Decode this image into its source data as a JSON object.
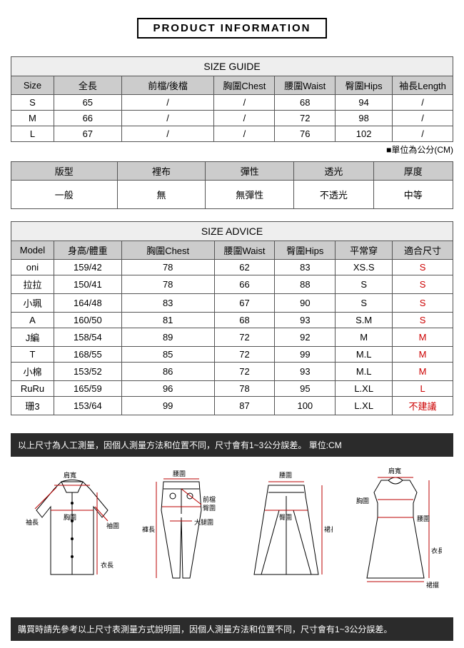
{
  "title": "PRODUCT INFORMATION",
  "sizeGuide": {
    "heading": "SIZE GUIDE",
    "columns": [
      "Size",
      "全長",
      "前檔/後檔",
      "胸圍Chest",
      "腰圍Waist",
      "臀圍Hips",
      "袖長Length"
    ],
    "rows": [
      [
        "S",
        "65",
        "/",
        "/",
        "68",
        "94",
        "/"
      ],
      [
        "M",
        "66",
        "/",
        "/",
        "72",
        "98",
        "/"
      ],
      [
        "L",
        "67",
        "/",
        "/",
        "76",
        "102",
        "/"
      ]
    ],
    "unitNote": "■單位為公分(CM)"
  },
  "attributes": {
    "columns": [
      "版型",
      "裡布",
      "彈性",
      "透光",
      "厚度"
    ],
    "values": [
      "一般",
      "無",
      "無彈性",
      "不透光",
      "中等"
    ]
  },
  "sizeAdvice": {
    "heading": "SIZE ADVICE",
    "columns": [
      "Model",
      "身高/體重",
      "胸圍Chest",
      "腰圍Waist",
      "臀圍Hips",
      "平常穿",
      "適合尺寸"
    ],
    "rows": [
      {
        "data": [
          "oni",
          "159/42",
          "78",
          "62",
          "83",
          "XS.S"
        ],
        "fit": "S"
      },
      {
        "data": [
          "拉拉",
          "150/41",
          "78",
          "66",
          "88",
          "S"
        ],
        "fit": "S"
      },
      {
        "data": [
          "小珮",
          "164/48",
          "83",
          "67",
          "90",
          "S"
        ],
        "fit": "S"
      },
      {
        "data": [
          "A",
          "160/50",
          "81",
          "68",
          "93",
          "S.M"
        ],
        "fit": "S"
      },
      {
        "data": [
          "J編",
          "158/54",
          "89",
          "72",
          "92",
          "M"
        ],
        "fit": "M"
      },
      {
        "data": [
          "T",
          "168/55",
          "85",
          "72",
          "99",
          "M.L"
        ],
        "fit": "M"
      },
      {
        "data": [
          "小棉",
          "153/52",
          "86",
          "72",
          "93",
          "M.L"
        ],
        "fit": "M"
      },
      {
        "data": [
          "RuRu",
          "165/59",
          "96",
          "78",
          "95",
          "L.XL"
        ],
        "fit": "L"
      },
      {
        "data": [
          "珊3",
          "153/64",
          "99",
          "87",
          "100",
          "L.XL"
        ],
        "fit": "不建議"
      }
    ]
  },
  "note1": "以上尺寸為人工測量，因個人測量方法和位置不同，尺寸會有1~3公分誤差。 單位:CM",
  "note2": "購買時請先參考以上尺寸表測量方式說明圖，因個人測量方法和位置不同，尺寸會有1~3公分誤差。",
  "diagramLabels": {
    "shoulder": "肩寬",
    "chest": "胸圍",
    "sleeve": "袖長",
    "cuff": "袖圍",
    "length": "衣長",
    "waist": "腰圍",
    "front": "前檔",
    "hip": "臀圍",
    "thigh": "大腿圍",
    "pantLen": "褲長",
    "skirtHip": "臀圍",
    "skirtLen": "裙長",
    "hem": "裙擺"
  },
  "styling": {
    "header_bg": "#cccccc",
    "section_bg": "#eeeeee",
    "darkbar_bg": "#2b2b2b",
    "fit_color": "#cc0000",
    "diagram_line": "#000000",
    "diagram_arrow": "#bb0000"
  }
}
